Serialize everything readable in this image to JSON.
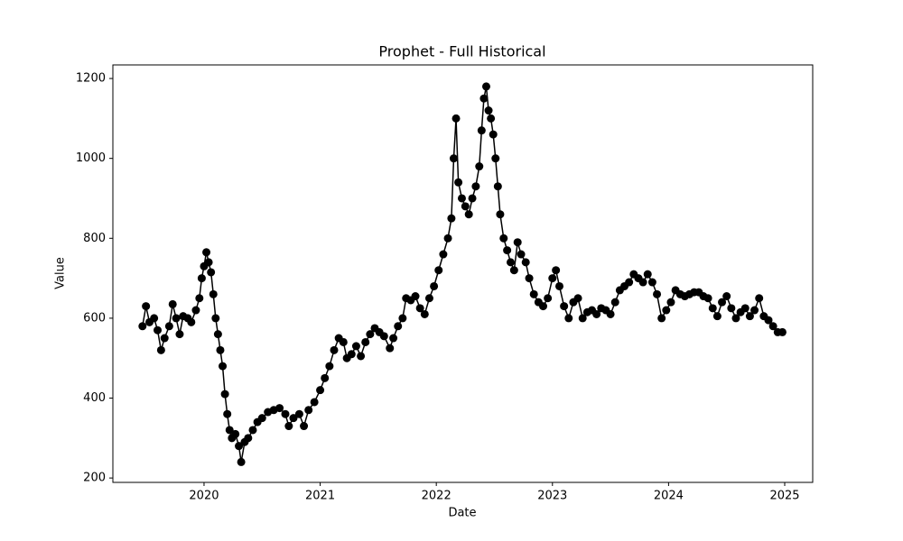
{
  "chart_data": {
    "type": "line",
    "title": "Prophet - Full Historical",
    "x_label": "Date",
    "y_label": "Value",
    "color": "#000000",
    "marker": "o",
    "x": [
      2019.47,
      2019.5,
      2019.53,
      2019.57,
      2019.6,
      2019.63,
      2019.66,
      2019.7,
      2019.73,
      2019.76,
      2019.79,
      2019.82,
      2019.86,
      2019.89,
      2019.93,
      2019.96,
      2019.98,
      2020.0,
      2020.02,
      2020.04,
      2020.06,
      2020.08,
      2020.1,
      2020.12,
      2020.14,
      2020.16,
      2020.18,
      2020.2,
      2020.22,
      2020.24,
      2020.27,
      2020.3,
      2020.32,
      2020.35,
      2020.38,
      2020.42,
      2020.46,
      2020.5,
      2020.55,
      2020.6,
      2020.65,
      2020.7,
      2020.73,
      2020.77,
      2020.82,
      2020.86,
      2020.9,
      2020.95,
      2021.0,
      2021.04,
      2021.08,
      2021.12,
      2021.16,
      2021.2,
      2021.23,
      2021.27,
      2021.31,
      2021.35,
      2021.39,
      2021.43,
      2021.47,
      2021.51,
      2021.55,
      2021.6,
      2021.63,
      2021.67,
      2021.71,
      2021.74,
      2021.78,
      2021.82,
      2021.86,
      2021.9,
      2021.94,
      2021.98,
      2022.02,
      2022.06,
      2022.1,
      2022.13,
      2022.15,
      2022.17,
      2022.19,
      2022.22,
      2022.25,
      2022.28,
      2022.31,
      2022.34,
      2022.37,
      2022.39,
      2022.41,
      2022.43,
      2022.45,
      2022.47,
      2022.49,
      2022.51,
      2022.53,
      2022.55,
      2022.58,
      2022.61,
      2022.64,
      2022.67,
      2022.7,
      2022.73,
      2022.77,
      2022.8,
      2022.84,
      2022.88,
      2022.92,
      2022.96,
      2023.0,
      2023.03,
      2023.06,
      2023.1,
      2023.14,
      2023.18,
      2023.22,
      2023.26,
      2023.3,
      2023.34,
      2023.38,
      2023.42,
      2023.46,
      2023.5,
      2023.54,
      2023.58,
      2023.62,
      2023.66,
      2023.7,
      2023.74,
      2023.78,
      2023.82,
      2023.86,
      2023.9,
      2023.94,
      2023.98,
      2024.02,
      2024.06,
      2024.1,
      2024.14,
      2024.18,
      2024.22,
      2024.26,
      2024.3,
      2024.34,
      2024.38,
      2024.42,
      2024.46,
      2024.5,
      2024.54,
      2024.58,
      2024.62,
      2024.66,
      2024.7,
      2024.74,
      2024.78,
      2024.82,
      2024.86,
      2024.9,
      2024.94,
      2024.98
    ],
    "values": [
      580,
      630,
      590,
      600,
      570,
      520,
      550,
      580,
      635,
      600,
      560,
      605,
      600,
      590,
      620,
      650,
      700,
      730,
      765,
      740,
      715,
      660,
      600,
      560,
      520,
      480,
      410,
      360,
      320,
      300,
      310,
      280,
      240,
      290,
      300,
      320,
      340,
      350,
      365,
      370,
      375,
      360,
      330,
      350,
      360,
      330,
      370,
      390,
      420,
      450,
      480,
      520,
      550,
      540,
      500,
      510,
      530,
      505,
      540,
      560,
      575,
      565,
      555,
      525,
      550,
      580,
      600,
      650,
      645,
      655,
      625,
      610,
      650,
      680,
      720,
      760,
      800,
      850,
      1000,
      1100,
      940,
      900,
      880,
      860,
      900,
      930,
      980,
      1070,
      1150,
      1180,
      1120,
      1100,
      1060,
      1000,
      930,
      860,
      800,
      770,
      740,
      720,
      790,
      760,
      740,
      700,
      660,
      640,
      630,
      650,
      700,
      720,
      680,
      630,
      600,
      640,
      650,
      600,
      615,
      620,
      610,
      625,
      620,
      610,
      640,
      670,
      680,
      690,
      710,
      700,
      690,
      710,
      690,
      660,
      600,
      620,
      640,
      670,
      660,
      655,
      660,
      665,
      665,
      655,
      650,
      625,
      605,
      640,
      655,
      625,
      600,
      615,
      625,
      605,
      620,
      650,
      605,
      595,
      580,
      565,
      565
    ],
    "xlim": [
      2019.215,
      2025.241
    ],
    "xticks": [
      2020,
      2021,
      2022,
      2023,
      2024,
      2025
    ],
    "ylim": [
      189,
      1234
    ],
    "yticks": [
      200,
      400,
      600,
      800,
      1000,
      1200
    ],
    "grid": false
  }
}
